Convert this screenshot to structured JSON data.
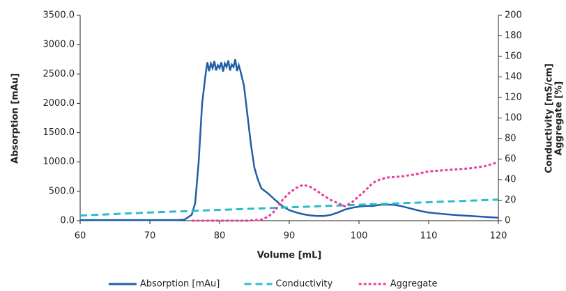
{
  "chart_data": {
    "type": "line",
    "xlabel": "Volume [mL]",
    "ylabel": "Absorption [mAu]",
    "y2label": [
      "Conductivity  [mS/cm]",
      "Aggregate [%]"
    ],
    "xlim": [
      60,
      120
    ],
    "xticks": [
      60,
      70,
      80,
      90,
      100,
      110,
      120
    ],
    "ylim": [
      0,
      3500
    ],
    "yticks": [
      {
        "value": 0,
        "label": "0.0"
      },
      {
        "value": 500,
        "label": "500.0"
      },
      {
        "value": 1000,
        "label": "1000.0"
      },
      {
        "value": 1500,
        "label": "1500.0"
      },
      {
        "value": 2000,
        "label": "2000.0"
      },
      {
        "value": 2500,
        "label": "2500.0"
      },
      {
        "value": 3000,
        "label": "3000.0"
      },
      {
        "value": 3500,
        "label": "3500.0"
      }
    ],
    "y2lim": [
      0,
      200
    ],
    "y2ticks": [
      0,
      20,
      40,
      60,
      80,
      100,
      120,
      140,
      160,
      180,
      200
    ],
    "legend": "bottom",
    "series": [
      {
        "name": "Absorption [mAu]",
        "color": "#1f5fa6",
        "dash": "solid",
        "x": [
          60,
          70,
          74,
          75,
          76,
          76.5,
          77,
          77.5,
          78,
          78.25,
          78.5,
          78.75,
          79,
          79.25,
          79.5,
          79.75,
          80,
          80.25,
          80.5,
          80.75,
          81,
          81.25,
          81.5,
          81.75,
          82,
          82.25,
          82.5,
          82.75,
          83,
          83.5,
          84,
          84.5,
          85,
          85.5,
          86,
          87,
          88,
          89,
          90,
          91,
          92,
          93,
          94,
          95,
          96,
          97,
          98,
          99,
          100,
          101,
          102,
          103,
          104,
          105,
          106,
          107,
          108,
          109,
          110,
          112,
          114,
          116,
          118,
          120
        ],
        "values": [
          10,
          10,
          10,
          20,
          100,
          300,
          1000,
          2000,
          2500,
          2700,
          2550,
          2680,
          2600,
          2720,
          2560,
          2650,
          2600,
          2700,
          2540,
          2680,
          2620,
          2730,
          2560,
          2660,
          2620,
          2750,
          2550,
          2650,
          2550,
          2300,
          1800,
          1300,
          900,
          700,
          550,
          460,
          350,
          250,
          180,
          140,
          110,
          90,
          80,
          80,
          100,
          140,
          190,
          220,
          240,
          250,
          250,
          270,
          275,
          270,
          250,
          220,
          190,
          160,
          140,
          115,
          95,
          80,
          65,
          50
        ]
      },
      {
        "name": "Conductivity",
        "color": "#2bbccc",
        "dash": "dashed",
        "axis": "y2",
        "x": [
          60,
          70,
          80,
          90,
          100,
          110,
          120
        ],
        "values": [
          5,
          8,
          10.5,
          13,
          15.5,
          18,
          20.5
        ]
      },
      {
        "name": "Aggregate",
        "color": "#e8409a",
        "dash": "dotted",
        "axis": "y2",
        "x": [
          76,
          84,
          86,
          87,
          88,
          89,
          90,
          91,
          92,
          93,
          94,
          95,
          96,
          97,
          98,
          99,
          100,
          101,
          102,
          103,
          104,
          106,
          108,
          110,
          112,
          114,
          116,
          118,
          120
        ],
        "values": [
          0,
          0,
          1,
          4,
          10,
          20,
          27,
          32,
          35,
          33,
          29,
          24,
          20,
          17,
          14,
          18,
          24,
          30,
          37,
          40,
          42,
          43,
          45,
          48,
          49,
          50,
          51,
          53,
          57
        ]
      }
    ]
  }
}
